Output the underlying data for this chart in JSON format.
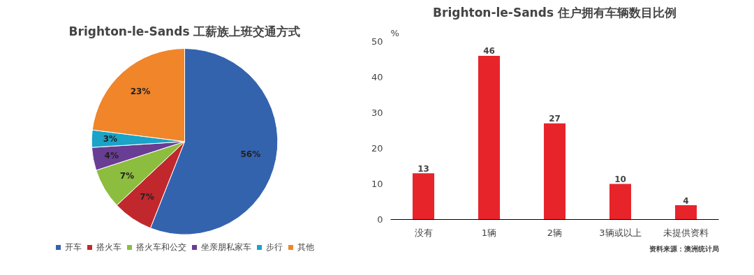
{
  "chart_data": [
    {
      "type": "pie",
      "title": "Brighton-le-Sands 工薪族上班交通方式",
      "categories": [
        "开车",
        "搭火车",
        "搭火车和公交",
        "坐亲朋私家车",
        "步行",
        "其他"
      ],
      "values": [
        56,
        7,
        7,
        4,
        3,
        23
      ],
      "colors": [
        "#3463ae",
        "#c0282d",
        "#8cbd3f",
        "#6a3d94",
        "#1ba3c8",
        "#f0852a"
      ],
      "value_labels": [
        "56%",
        "7%",
        "7%",
        "4%",
        "3%",
        "23%"
      ],
      "legend": "bottom"
    },
    {
      "type": "bar",
      "title": "Brighton-le-Sands 住户拥有车辆数目比例",
      "categories": [
        "没有",
        "1辆",
        "2辆",
        "3辆或以上",
        "未提供资料"
      ],
      "values": [
        13,
        46,
        27,
        10,
        4
      ],
      "color": "#e8242b",
      "ylabel": "%",
      "ylim": [
        0,
        50
      ],
      "yticks": [
        0,
        10,
        20,
        30,
        40,
        50
      ],
      "data_labels": true,
      "grid": false,
      "annotations": [
        "资料来源：澳洲统计局"
      ]
    }
  ]
}
